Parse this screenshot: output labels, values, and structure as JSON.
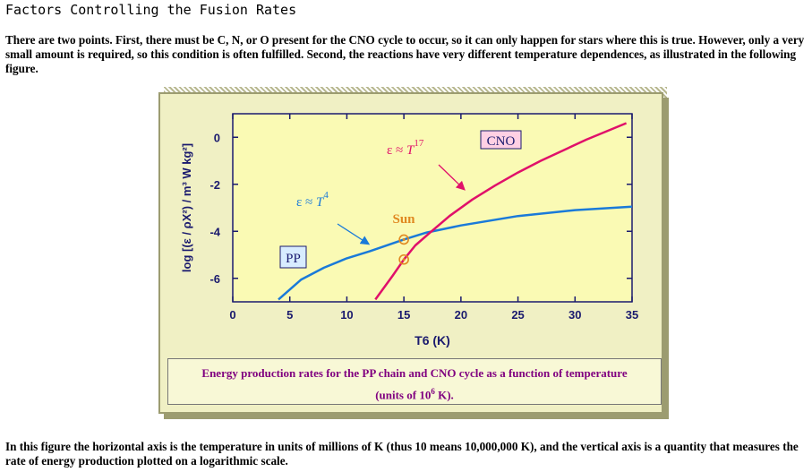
{
  "page": {
    "title": "Factors Controlling the Fusion Rates",
    "intro": "There are two points. First, there must be C, N, or O present for the CNO cycle to occur, so it can only happen for stars where this is true. However, only a very small amount is required, so this condition is often fulfilled. Second, the reactions have very different temperature dependences, as illustrated in the following figure.",
    "outro": "In this figure the horizontal axis is the temperature in units of millions of K (thus 10 means 10,000,000 K), and the vertical axis is a quantity that measures the rate of energy production plotted on a logarithmic scale."
  },
  "caption": {
    "line1": "Energy production rates for the PP chain and CNO cycle as a function of temperature",
    "line2_prefix": "(units of 10",
    "line2_sup": "6",
    "line2_suffix": " K)."
  },
  "colors": {
    "pp": "#1a7ad9",
    "cno": "#e0106a",
    "sun": "#e08820",
    "axis": "#1a1a6e",
    "plot_bg": "#fafab4"
  },
  "chart_data": {
    "type": "line",
    "xlabel": "T6 (K)",
    "ylabel": "log [(ε / ρX²) / m³ W kg²]",
    "xlim": [
      0,
      35
    ],
    "ylim": [
      -7,
      1
    ],
    "xticks": [
      0,
      5,
      10,
      15,
      20,
      25,
      30,
      35
    ],
    "yticks": [
      0,
      -2,
      -4,
      -6
    ],
    "series": [
      {
        "name": "PP",
        "x": [
          4,
          6,
          8,
          10,
          12,
          15,
          17,
          20,
          25,
          30,
          35
        ],
        "y": [
          -6.9,
          -6.05,
          -5.55,
          -5.15,
          -4.85,
          -4.35,
          -4.05,
          -3.75,
          -3.35,
          -3.1,
          -2.95
        ]
      },
      {
        "name": "CNO",
        "x": [
          12.5,
          14,
          15,
          16,
          17.3,
          19,
          21,
          23,
          25,
          27,
          29,
          31,
          33,
          34.5
        ],
        "y": [
          -6.9,
          -5.9,
          -5.2,
          -4.6,
          -4.05,
          -3.35,
          -2.65,
          -2.05,
          -1.5,
          -1.0,
          -0.55,
          -0.1,
          0.3,
          0.6
        ]
      }
    ],
    "annotations": [
      {
        "text": "PP",
        "kind": "box-label"
      },
      {
        "text": "CNO",
        "kind": "box-label"
      },
      {
        "text_prefix": "ε ≈ ",
        "text_var": "T",
        "text_exp": "4"
      },
      {
        "text_prefix": "ε ≈ ",
        "text_var": "T",
        "text_exp": "17"
      },
      {
        "text": "Sun"
      }
    ],
    "sun_points": [
      {
        "x": 15,
        "y": -4.35
      },
      {
        "x": 15,
        "y": -5.2
      }
    ],
    "grid": false
  }
}
